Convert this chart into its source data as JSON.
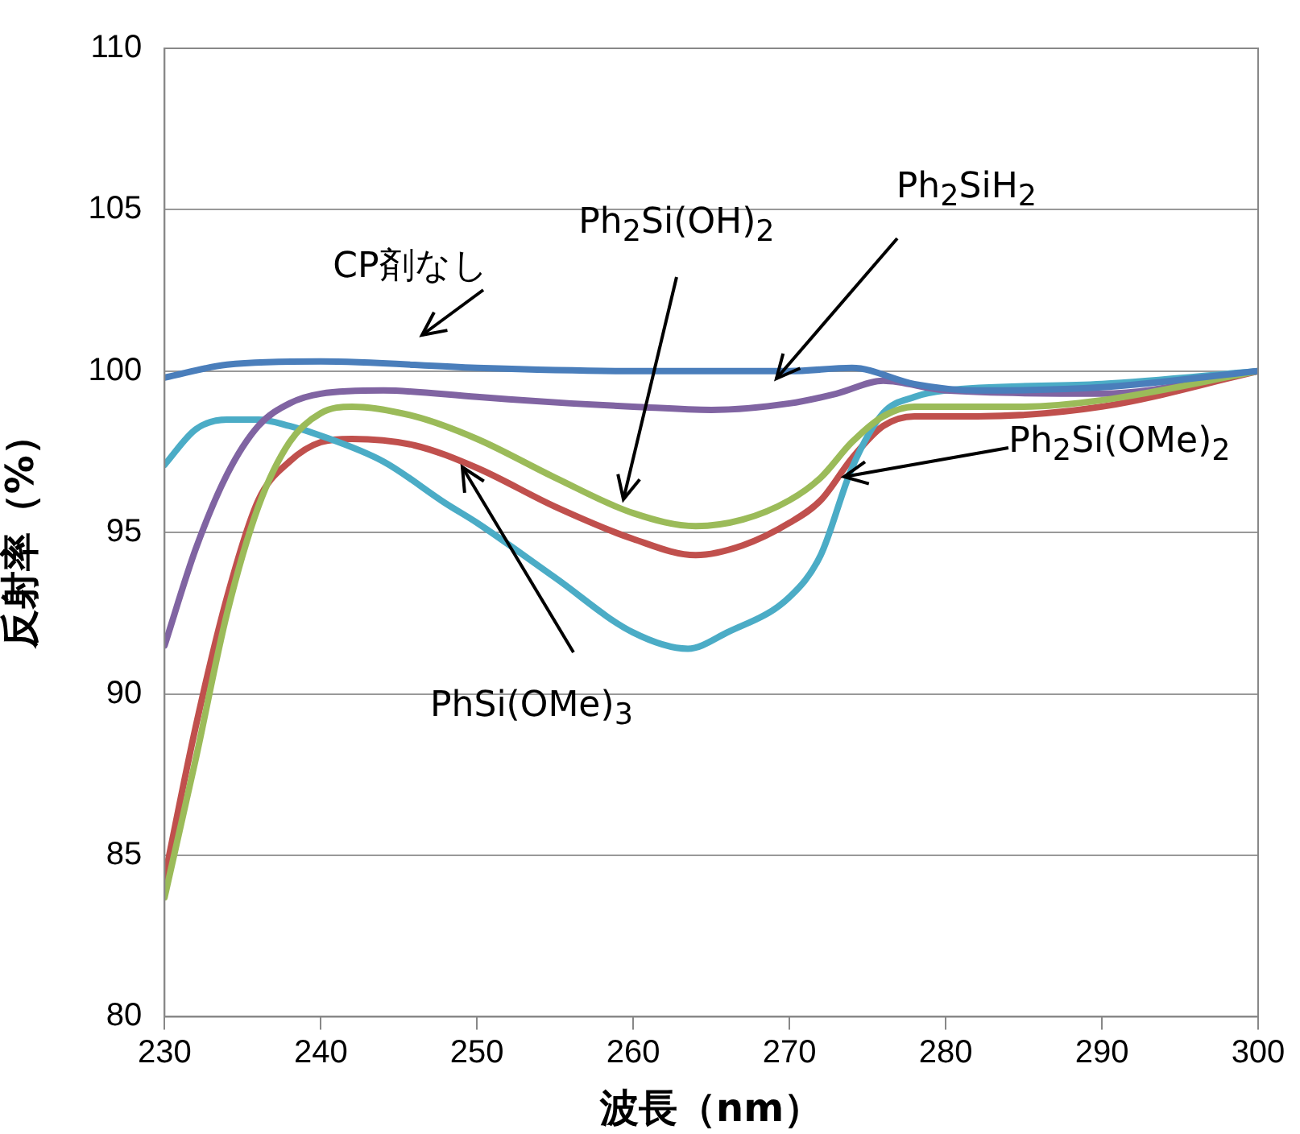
{
  "chart_data": {
    "type": "line",
    "xlabel": "波長（nm）",
    "ylabel": "反射率（%）",
    "xlim": [
      230,
      300
    ],
    "xticks": [
      230,
      240,
      250,
      260,
      270,
      280,
      290,
      300
    ],
    "ylim": [
      80,
      110
    ],
    "yticks": [
      80,
      85,
      90,
      95,
      100,
      105,
      110
    ],
    "grid": "y",
    "legend": false,
    "marker": "none",
    "line_style": "solid",
    "series": [
      {
        "name": "CP剤なし",
        "color": "#4a7ebb",
        "x": [
          230,
          234,
          240,
          250,
          260,
          270,
          274,
          278,
          282,
          290,
          300
        ],
        "values": [
          99.8,
          100.2,
          100.3,
          100.1,
          100.0,
          100.0,
          100.1,
          99.6,
          99.4,
          99.5,
          100
        ]
      },
      {
        "name": "Ph$_{2}$Si(OH)$_{2}$",
        "color": "#9bbb59",
        "x": [
          230,
          232,
          234,
          236,
          238,
          240,
          242,
          246,
          250,
          255,
          260,
          264,
          267,
          270,
          272,
          274,
          276,
          278,
          285,
          290,
          300
        ],
        "values": [
          83.7,
          88,
          92.5,
          95.8,
          97.8,
          98.7,
          98.9,
          98.6,
          97.9,
          96.7,
          95.6,
          95.2,
          95.4,
          96.0,
          96.7,
          97.8,
          98.6,
          98.9,
          98.9,
          99.1,
          100
        ]
      },
      {
        "name": "Ph$_{2}$SiH$_{2}$",
        "color": "#8064a2",
        "x": [
          230,
          232,
          234,
          236,
          238,
          240,
          244,
          250,
          256,
          260,
          265,
          270,
          273,
          276,
          280,
          290,
          300
        ],
        "values": [
          91.5,
          94.5,
          96.8,
          98.3,
          99.0,
          99.3,
          99.4,
          99.2,
          99.0,
          98.9,
          98.8,
          99.0,
          99.3,
          99.7,
          99.4,
          99.3,
          100
        ]
      },
      {
        "name": "PhSi(OMe)$_{3}$",
        "color": "#4bacc6",
        "x": [
          230,
          232,
          234,
          236,
          238,
          240,
          244,
          248,
          250,
          255,
          260,
          263.5,
          266,
          270,
          272,
          274,
          276,
          278,
          280,
          290,
          300
        ],
        "values": [
          97.1,
          98.2,
          98.5,
          98.5,
          98.3,
          98.0,
          97.2,
          95.9,
          95.3,
          93.6,
          91.9,
          91.4,
          91.9,
          93.0,
          94.3,
          97.0,
          98.7,
          99.2,
          99.4,
          99.6,
          100
        ]
      },
      {
        "name": "Ph$_{2}$Si(OMe)$_{2}$",
        "color": "#c0504d",
        "x": [
          230,
          232,
          234,
          236,
          238,
          240,
          242,
          246,
          250,
          255,
          260,
          264,
          267,
          270,
          272,
          274,
          276,
          278,
          282,
          290,
          300
        ],
        "values": [
          84.3,
          89,
          93,
          96,
          97.2,
          97.8,
          97.9,
          97.7,
          97.0,
          95.8,
          94.8,
          94.3,
          94.6,
          95.3,
          96.0,
          97.3,
          98.3,
          98.6,
          98.6,
          98.9,
          100
        ]
      }
    ]
  }
}
